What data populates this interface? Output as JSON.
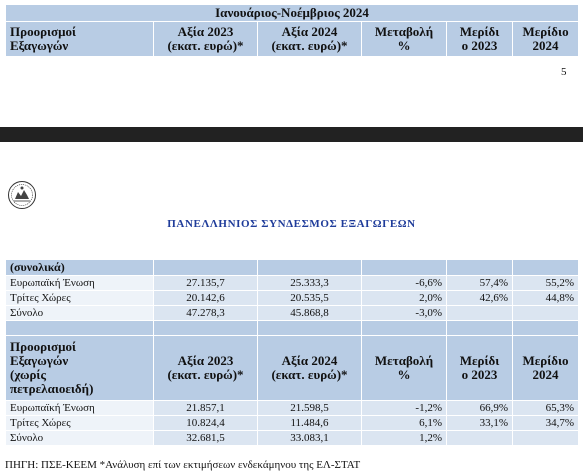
{
  "top_table": {
    "title": "Ιανουάριος-Νοέμβριος 2024",
    "headers": {
      "destinations": [
        "Προορισμοί",
        "Εξαγωγών"
      ],
      "value_2023": [
        "Αξία 2023",
        "(εκατ. ευρώ)*"
      ],
      "value_2024": [
        "Αξία 2024",
        "(εκατ. ευρώ)*"
      ],
      "change": [
        "Μεταβολή",
        "%"
      ],
      "share_2023": [
        "Μερίδι",
        "ο 2023"
      ],
      "share_2024": [
        "Μερίδιο",
        "2024"
      ]
    }
  },
  "page_number": "5",
  "association": "ΠΑΝΕΛΛΗΝΙΟΣ ΣΥΝΔΕΣΜΟΣ ΕΞΑΓΩΓΕΩΝ",
  "overall_section": {
    "label": "(συνολικά)",
    "rows": [
      {
        "name": "Ευρωπαϊκή Ένωση",
        "v2023": "27.135,7",
        "v2024": "25.333,3",
        "change": "-6,6%",
        "s2023": "57,4%",
        "s2024": "55,2%"
      },
      {
        "name": "Τρίτες Χώρες",
        "v2023": "20.142,6",
        "v2024": "20.535,5",
        "change": "2,0%",
        "s2023": "42,6%",
        "s2024": "44,8%"
      },
      {
        "name": "Σύνολο",
        "v2023": "47.278,3",
        "v2024": "45.868,8",
        "change": "-3,0%",
        "s2023": "",
        "s2024": ""
      }
    ]
  },
  "non_oil_section": {
    "headers": {
      "destinations": [
        "Προορισμοί",
        "Εξαγωγών",
        "(χωρίς",
        "πετρελαιοειδή)"
      ],
      "value_2023": [
        "Αξία 2023",
        "(εκατ. ευρώ)*"
      ],
      "value_2024": [
        "Αξία 2024",
        "(εκατ. ευρώ)*"
      ],
      "change": [
        "Μεταβολή",
        "%"
      ],
      "share_2023": [
        "Μερίδι",
        "ο 2023"
      ],
      "share_2024": [
        "Μερίδιο",
        "2024"
      ]
    },
    "rows": [
      {
        "name": "Ευρωπαϊκή Ένωση",
        "v2023": "21.857,1",
        "v2024": "21.598,5",
        "change": "-1,2%",
        "s2023": "66,9%",
        "s2024": "65,3%"
      },
      {
        "name": "Τρίτες Χώρες",
        "v2023": "10.824,4",
        "v2024": "11.484,6",
        "change": "6,1%",
        "s2023": "33,1%",
        "s2024": "34,7%"
      },
      {
        "name": "Σύνολο",
        "v2023": "32.681,5",
        "v2024": "33.083,1",
        "change": "1,2%",
        "s2023": "",
        "s2024": ""
      }
    ]
  },
  "source_note": "ΠΗΓΗ: ΠΣΕ-ΚΕΕΜ *Ανάλυση επί των εκτιμήσεων ενδεκάμηνου της ΕΛ-ΣΤΑΤ"
}
